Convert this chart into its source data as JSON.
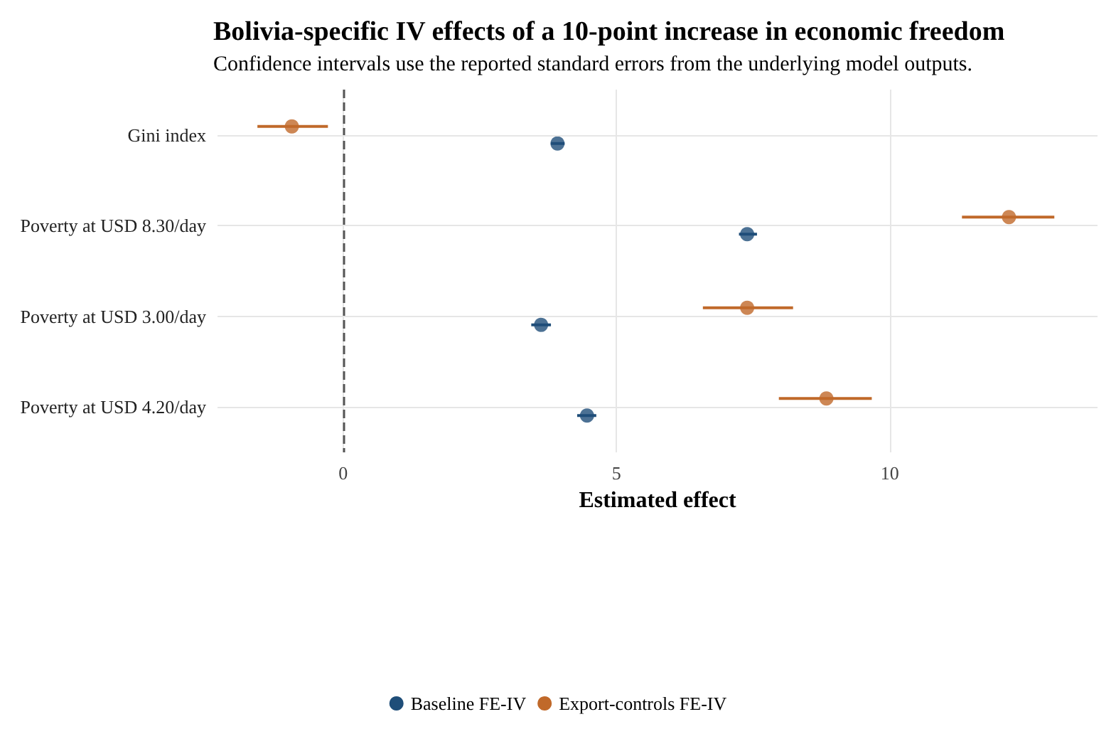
{
  "chart_data": {
    "type": "scatter",
    "orientation": "horizontal",
    "title": "Bolivia-specific IV effects of a 10-point increase in economic freedom",
    "subtitle": "Confidence intervals use the reported standard errors from the underlying model outputs.",
    "xlabel": "Estimated effect",
    "categories": [
      "Gini index",
      "Poverty at USD 8.30/day",
      "Poverty at USD 3.00/day",
      "Poverty at USD 4.20/day"
    ],
    "series": [
      {
        "name": "Baseline FE-IV",
        "color": "#1f4e79",
        "values": [
          3.92,
          7.39,
          3.62,
          4.46
        ],
        "errors": [
          [
            3.8,
            4.05
          ],
          [
            7.24,
            7.57
          ],
          [
            3.44,
            3.8
          ],
          [
            4.28,
            4.63
          ]
        ]
      },
      {
        "name": "Export-controls FE-IV",
        "color": "#c0692a",
        "values": [
          -0.94,
          12.18,
          7.39,
          8.84
        ],
        "errors": [
          [
            -1.57,
            -0.28
          ],
          [
            11.32,
            13.01
          ],
          [
            6.58,
            8.23
          ],
          [
            7.97,
            9.67
          ]
        ]
      }
    ],
    "xlim": [
      -2.3,
      13.8
    ],
    "xticks": [
      0,
      5,
      10
    ],
    "ref_lines": [
      {
        "axis": "x",
        "value": 0,
        "line_style": "dashed",
        "color": "#555555"
      }
    ],
    "grid": true,
    "legend": "bottom",
    "marker": "circle"
  }
}
